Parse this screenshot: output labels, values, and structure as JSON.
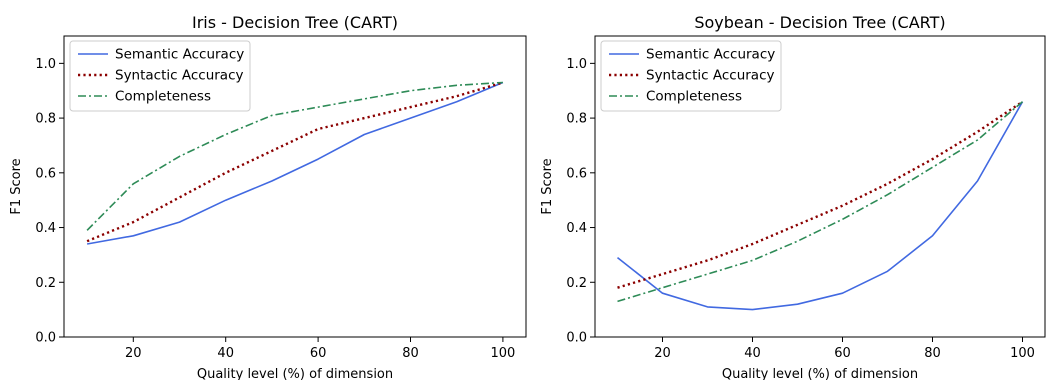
{
  "chart_data": [
    {
      "type": "line",
      "title": "Iris - Decision Tree (CART)",
      "xlabel": "Quality level (%) of dimension",
      "ylabel": "F1 Score",
      "xlim": [
        5,
        105
      ],
      "ylim": [
        0.0,
        1.1
      ],
      "xticks": [
        20,
        40,
        60,
        80,
        100
      ],
      "yticks": [
        0.0,
        0.2,
        0.4,
        0.6,
        0.8,
        1.0
      ],
      "xtick_labels": [
        "20",
        "40",
        "60",
        "80",
        "100"
      ],
      "ytick_labels": [
        "0.0",
        "0.2",
        "0.4",
        "0.6",
        "0.8",
        "1.0"
      ],
      "grid": false,
      "legend_position": "top-left",
      "x": [
        10,
        20,
        30,
        40,
        50,
        60,
        70,
        80,
        90,
        100
      ],
      "series": [
        {
          "name": "Semantic Accuracy",
          "color": "#4169e1",
          "dash": "solid",
          "values": [
            0.34,
            0.37,
            0.42,
            0.5,
            0.57,
            0.65,
            0.74,
            0.8,
            0.86,
            0.93
          ]
        },
        {
          "name": "Syntactic Accuracy",
          "color": "#8b0000",
          "dash": "dotted",
          "values": [
            0.35,
            0.42,
            0.51,
            0.6,
            0.68,
            0.76,
            0.8,
            0.84,
            0.88,
            0.93
          ]
        },
        {
          "name": "Completeness",
          "color": "#2e8b57",
          "dash": "dashdot",
          "values": [
            0.39,
            0.56,
            0.66,
            0.74,
            0.81,
            0.84,
            0.87,
            0.9,
            0.92,
            0.93
          ]
        }
      ]
    },
    {
      "type": "line",
      "title": "Soybean - Decision Tree (CART)",
      "xlabel": "Quality level (%) of dimension",
      "ylabel": "F1 Score",
      "xlim": [
        5,
        105
      ],
      "ylim": [
        0.0,
        1.1
      ],
      "xticks": [
        20,
        40,
        60,
        80,
        100
      ],
      "yticks": [
        0.0,
        0.2,
        0.4,
        0.6,
        0.8,
        1.0
      ],
      "xtick_labels": [
        "20",
        "40",
        "60",
        "80",
        "100"
      ],
      "ytick_labels": [
        "0.0",
        "0.2",
        "0.4",
        "0.6",
        "0.8",
        "1.0"
      ],
      "grid": false,
      "legend_position": "top-left",
      "x": [
        10,
        20,
        30,
        40,
        50,
        60,
        70,
        80,
        90,
        100
      ],
      "series": [
        {
          "name": "Semantic Accuracy",
          "color": "#4169e1",
          "dash": "solid",
          "values": [
            0.29,
            0.16,
            0.11,
            0.1,
            0.12,
            0.16,
            0.24,
            0.37,
            0.57,
            0.86
          ]
        },
        {
          "name": "Syntactic Accuracy",
          "color": "#8b0000",
          "dash": "dotted",
          "values": [
            0.18,
            0.23,
            0.28,
            0.34,
            0.41,
            0.48,
            0.56,
            0.65,
            0.75,
            0.86
          ]
        },
        {
          "name": "Completeness",
          "color": "#2e8b57",
          "dash": "dashdot",
          "values": [
            0.13,
            0.18,
            0.23,
            0.28,
            0.35,
            0.43,
            0.52,
            0.62,
            0.72,
            0.86
          ]
        }
      ]
    }
  ]
}
